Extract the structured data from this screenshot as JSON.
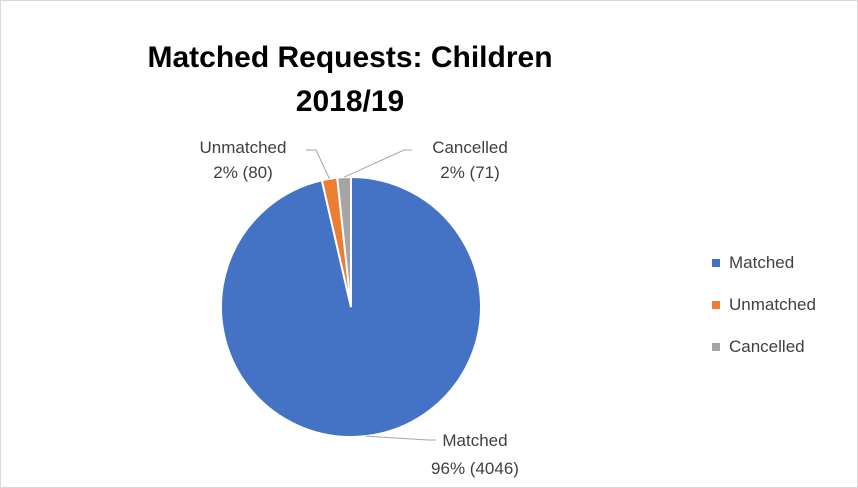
{
  "chart_data": {
    "type": "pie",
    "title_line1": "Matched Requests: Children",
    "title_line2": "2018/19",
    "slices": [
      {
        "name": "Matched",
        "value": 4046,
        "percent_label": "96% (4046)",
        "color": "#4472c4"
      },
      {
        "name": "Unmatched",
        "value": 80,
        "percent_label": "2% (80)",
        "color": "#ed7d31"
      },
      {
        "name": "Cancelled",
        "value": 71,
        "percent_label": "2% (71)",
        "color": "#a5a5a5"
      }
    ],
    "legend": {
      "placement": "right",
      "entries": [
        "Matched",
        "Unmatched",
        "Cancelled"
      ]
    }
  }
}
